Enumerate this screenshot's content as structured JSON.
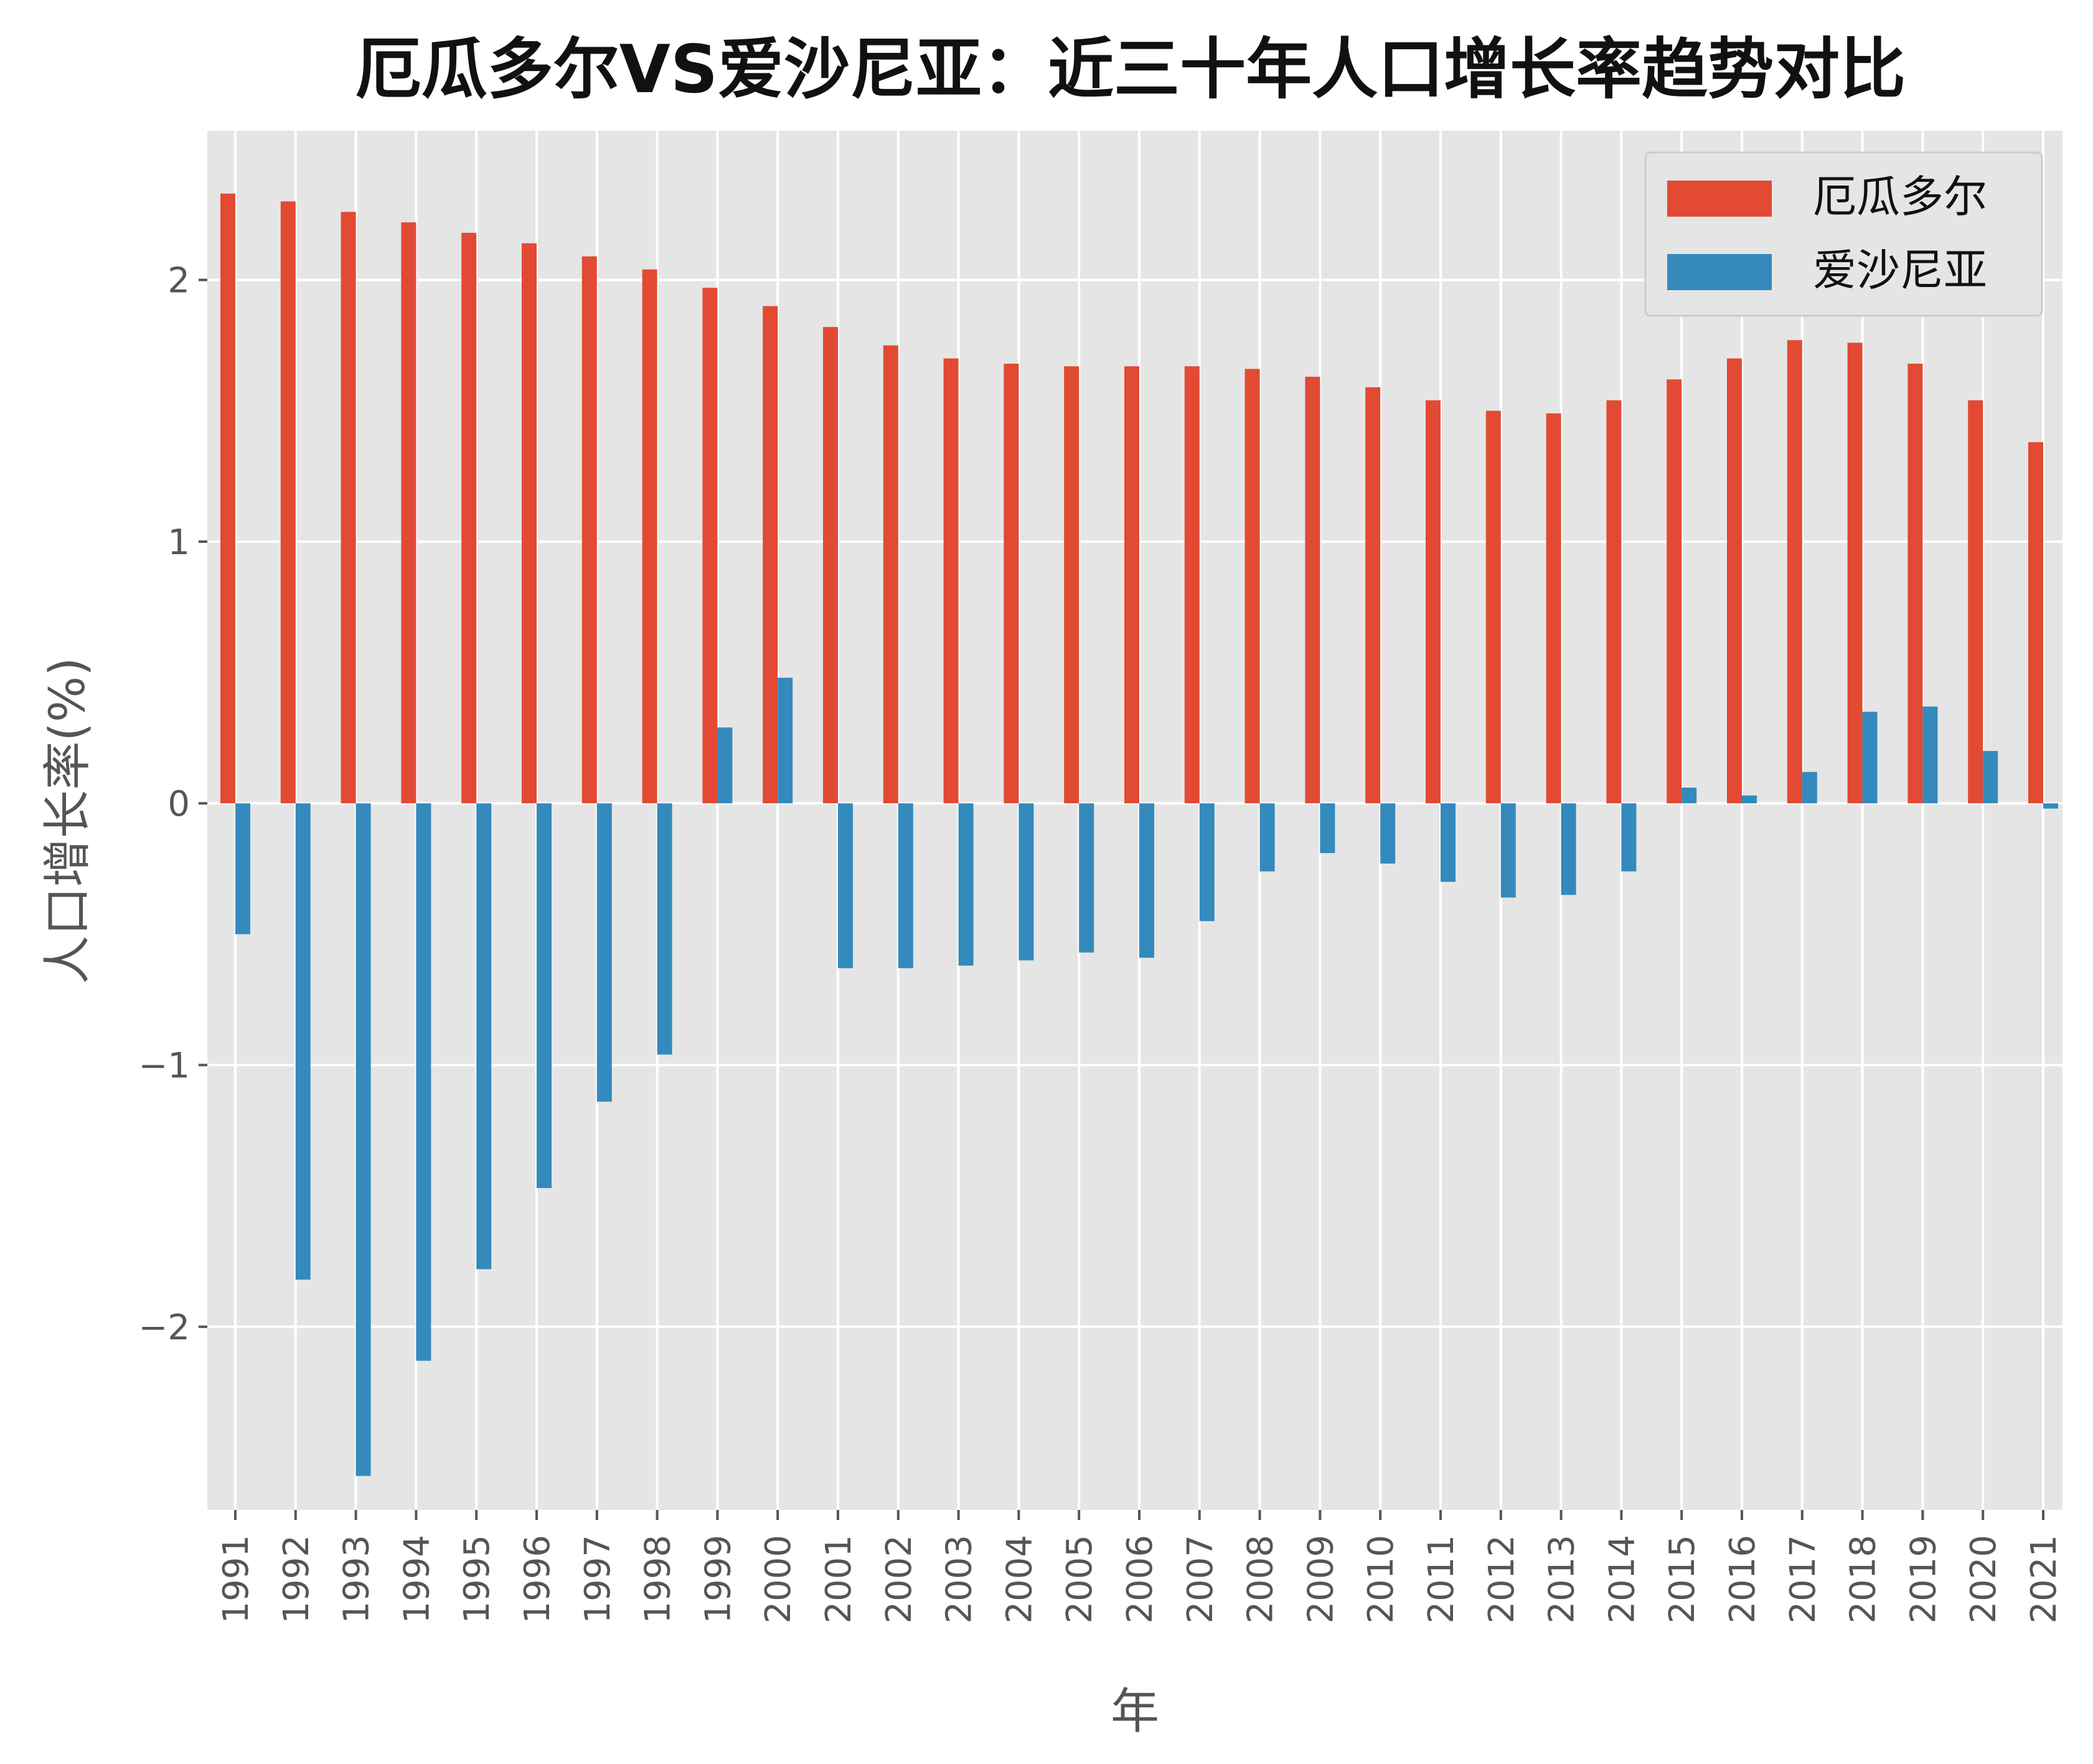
{
  "chart_data": {
    "type": "bar",
    "title": "厄瓜多尔VS爱沙尼亚：近三十年人口增长率趋势对比",
    "xlabel": "年",
    "ylabel": "人口增长率(%)",
    "ylim": [
      -2.7,
      2.57
    ],
    "yticks": [
      -2,
      -1,
      0,
      1,
      2
    ],
    "ytick_labels": [
      "−2",
      "−1",
      "0",
      "1",
      "2"
    ],
    "grid": true,
    "legend_position": "top-right",
    "categories": [
      "1991",
      "1992",
      "1993",
      "1994",
      "1995",
      "1996",
      "1997",
      "1998",
      "1999",
      "2000",
      "2001",
      "2002",
      "2003",
      "2004",
      "2005",
      "2006",
      "2007",
      "2008",
      "2009",
      "2010",
      "2011",
      "2012",
      "2013",
      "2014",
      "2015",
      "2016",
      "2017",
      "2018",
      "2019",
      "2020",
      "2021"
    ],
    "series": [
      {
        "name": "厄瓜多尔",
        "color": "#e24a33",
        "values": [
          2.33,
          2.3,
          2.26,
          2.22,
          2.18,
          2.14,
          2.09,
          2.04,
          1.97,
          1.9,
          1.82,
          1.75,
          1.7,
          1.68,
          1.67,
          1.67,
          1.67,
          1.66,
          1.63,
          1.59,
          1.54,
          1.5,
          1.49,
          1.54,
          1.62,
          1.7,
          1.77,
          1.76,
          1.68,
          1.54,
          1.38
        ]
      },
      {
        "name": "爱沙尼亚",
        "color": "#348abd",
        "values": [
          -0.5,
          -1.82,
          -2.57,
          -2.13,
          -1.78,
          -1.47,
          -1.14,
          -0.96,
          0.29,
          0.48,
          -0.63,
          -0.63,
          -0.62,
          -0.6,
          -0.57,
          -0.59,
          -0.45,
          -0.26,
          -0.19,
          -0.23,
          -0.3,
          -0.36,
          -0.35,
          -0.26,
          0.06,
          0.03,
          0.12,
          0.35,
          0.37,
          0.2,
          -0.02
        ]
      }
    ]
  }
}
